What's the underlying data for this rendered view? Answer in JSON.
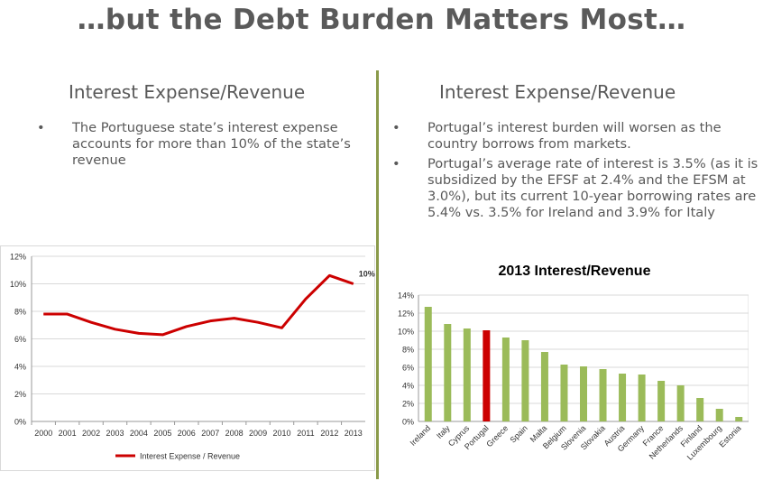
{
  "page": {
    "title": "…but the Debt Burden Matters Most…",
    "left": {
      "heading": "Interest Expense/Revenue",
      "bullets": [
        "The Portuguese state’s interest expense accounts for more than 10% of the state’s revenue"
      ]
    },
    "right": {
      "heading": "Interest Expense/Revenue",
      "bullets": [
        "Portugal’s interest burden will worsen as the country borrows from markets.",
        "Portugal’s average rate of interest is 3.5% (as it is subsidized by the EFSF at 2.4% and the EFSM at 3.0%), but its current 10-year borrowing rates are 5.4% vs. 3.5% for Ireland and 3.9% for Italy"
      ]
    },
    "bullet_glyph": "•"
  },
  "colors": {
    "line": "#cc0000",
    "bar": "#9bbb59",
    "highlight_bar": "#cc0000",
    "divider": "#8a9a4a"
  },
  "chart_data": [
    {
      "type": "line",
      "title": "",
      "x": [
        "2000",
        "2001",
        "2002",
        "2003",
        "2004",
        "2005",
        "2006",
        "2007",
        "2008",
        "2009",
        "2010",
        "2011",
        "2012",
        "2013"
      ],
      "series": [
        {
          "name": "Interest Expense / Revenue",
          "values": [
            7.8,
            7.8,
            7.2,
            6.7,
            6.4,
            6.3,
            6.9,
            7.3,
            7.5,
            7.2,
            6.8,
            8.9,
            10.6,
            10.0
          ]
        }
      ],
      "yticks": [
        "0%",
        "2%",
        "4%",
        "6%",
        "8%",
        "10%",
        "12%"
      ],
      "ylim": [
        0,
        12
      ],
      "end_label": "10%",
      "legend": "bottom",
      "grid": true
    },
    {
      "type": "bar",
      "title": "2013 Interest/Revenue",
      "categories": [
        "Ireland",
        "Italy",
        "Cyprus",
        "Portugal",
        "Greece",
        "Spain",
        "Malta",
        "Belgium",
        "Slovenia",
        "Slovakia",
        "Austria",
        "Germany",
        "France",
        "Netherlands",
        "Finland",
        "Luxembourg",
        "Estonia"
      ],
      "values": [
        12.7,
        10.8,
        10.3,
        10.1,
        9.3,
        9.0,
        7.7,
        6.3,
        6.1,
        5.8,
        5.3,
        5.2,
        4.5,
        4.0,
        2.6,
        1.4,
        0.5
      ],
      "highlight": "Portugal",
      "yticks": [
        "0%",
        "2%",
        "4%",
        "6%",
        "8%",
        "10%",
        "12%",
        "14%"
      ],
      "ylim": [
        0,
        14
      ],
      "grid": true
    }
  ]
}
